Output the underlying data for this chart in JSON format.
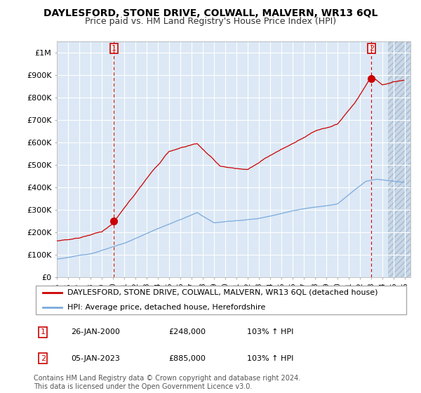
{
  "title": "DAYLESFORD, STONE DRIVE, COLWALL, MALVERN, WR13 6QL",
  "subtitle": "Price paid vs. HM Land Registry's House Price Index (HPI)",
  "ylabel_ticks": [
    "£0",
    "£100K",
    "£200K",
    "£300K",
    "£400K",
    "£500K",
    "£600K",
    "£700K",
    "£800K",
    "£900K",
    "£1M"
  ],
  "ytick_values": [
    0,
    100000,
    200000,
    300000,
    400000,
    500000,
    600000,
    700000,
    800000,
    900000,
    1000000
  ],
  "xlim_start": 1995,
  "xlim_end": 2026.5,
  "ylim": [
    0,
    1050000
  ],
  "background_color": "#ffffff",
  "chart_bg_color": "#dce8f5",
  "grid_color": "#ffffff",
  "red_line_color": "#cc0000",
  "blue_line_color": "#7aaadd",
  "sale1_x": 2000.07,
  "sale1_y": 248000,
  "sale2_x": 2023.03,
  "sale2_y": 885000,
  "legend_line1": "DAYLESFORD, STONE DRIVE, COLWALL, MALVERN, WR13 6QL (detached house)",
  "legend_line2": "HPI: Average price, detached house, Herefordshire",
  "table_entries": [
    {
      "num": "1",
      "date": "26-JAN-2000",
      "price": "£248,000",
      "hpi": "103% ↑ HPI"
    },
    {
      "num": "2",
      "date": "05-JAN-2023",
      "price": "£885,000",
      "hpi": "103% ↑ HPI"
    }
  ],
  "footnote": "Contains HM Land Registry data © Crown copyright and database right 2024.\nThis data is licensed under the Open Government Licence v3.0.",
  "title_fontsize": 10,
  "subtitle_fontsize": 9,
  "tick_fontsize": 8,
  "legend_fontsize": 8,
  "table_fontsize": 8,
  "footnote_fontsize": 7
}
